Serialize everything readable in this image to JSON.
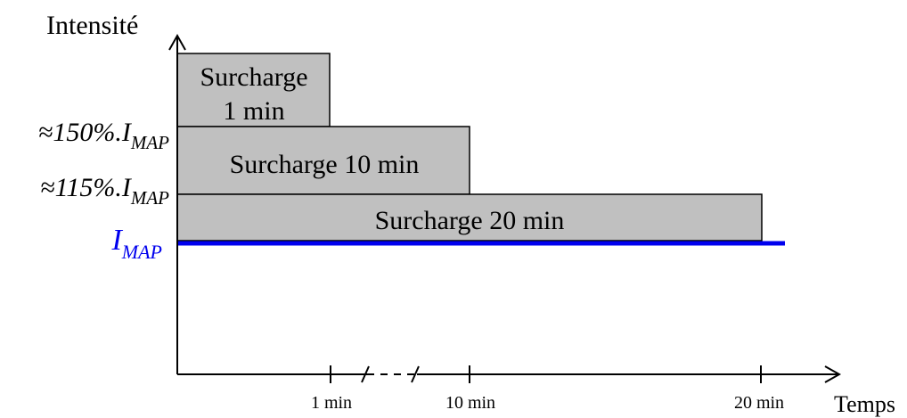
{
  "axes": {
    "y_title": "Intensité",
    "x_title": "Temps"
  },
  "levels": [
    {
      "prefix": "≈150%.",
      "symbol": "I",
      "subscript": "MAP"
    },
    {
      "prefix": "≈115%.",
      "symbol": "I",
      "subscript": "MAP"
    },
    {
      "prefix": "",
      "symbol": "I",
      "subscript": "MAP"
    }
  ],
  "blocks": [
    {
      "line1": "Surcharge",
      "line2": "1 min"
    },
    {
      "line1": "Surcharge 10 min"
    },
    {
      "line1": "Surcharge 20 min"
    }
  ],
  "ticks": [
    "1 min",
    "10 min",
    "20 min"
  ],
  "colors": {
    "block_fill": "#c0c0c0",
    "nominal_line": "#0000ee",
    "axis": "#000000"
  }
}
